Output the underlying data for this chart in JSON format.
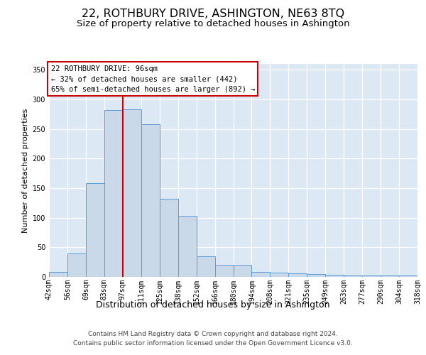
{
  "title": "22, ROTHBURY DRIVE, ASHINGTON, NE63 8TQ",
  "subtitle": "Size of property relative to detached houses in Ashington",
  "xlabel": "Distribution of detached houses by size in Ashington",
  "ylabel": "Number of detached properties",
  "categories": [
    "42sqm",
    "56sqm",
    "69sqm",
    "83sqm",
    "97sqm",
    "111sqm",
    "125sqm",
    "138sqm",
    "152sqm",
    "166sqm",
    "180sqm",
    "194sqm",
    "208sqm",
    "221sqm",
    "235sqm",
    "249sqm",
    "263sqm",
    "277sqm",
    "290sqm",
    "304sqm",
    "318sqm"
  ],
  "values": [
    8,
    40,
    158,
    282,
    283,
    258,
    132,
    103,
    35,
    20,
    20,
    9,
    7,
    6,
    5,
    4,
    3,
    3,
    2,
    2
  ],
  "bar_color": "#c9d9ea",
  "bar_edge_color": "#5b9bd5",
  "vline_color": "#cc0000",
  "annotation_title": "22 ROTHBURY DRIVE: 96sqm",
  "annotation_line2": "← 32% of detached houses are smaller (442)",
  "annotation_line3": "65% of semi-detached houses are larger (892) →",
  "ylim": [
    0,
    360
  ],
  "yticks": [
    0,
    50,
    100,
    150,
    200,
    250,
    300,
    350
  ],
  "footer1": "Contains HM Land Registry data © Crown copyright and database right 2024.",
  "footer2": "Contains public sector information licensed under the Open Government Licence v3.0.",
  "plot_bg_color": "#dde8f5",
  "title_fontsize": 11.5,
  "subtitle_fontsize": 9.5,
  "xlabel_fontsize": 9,
  "ylabel_fontsize": 8,
  "tick_fontsize": 7,
  "annot_fontsize": 7.5,
  "footer_fontsize": 6.5
}
